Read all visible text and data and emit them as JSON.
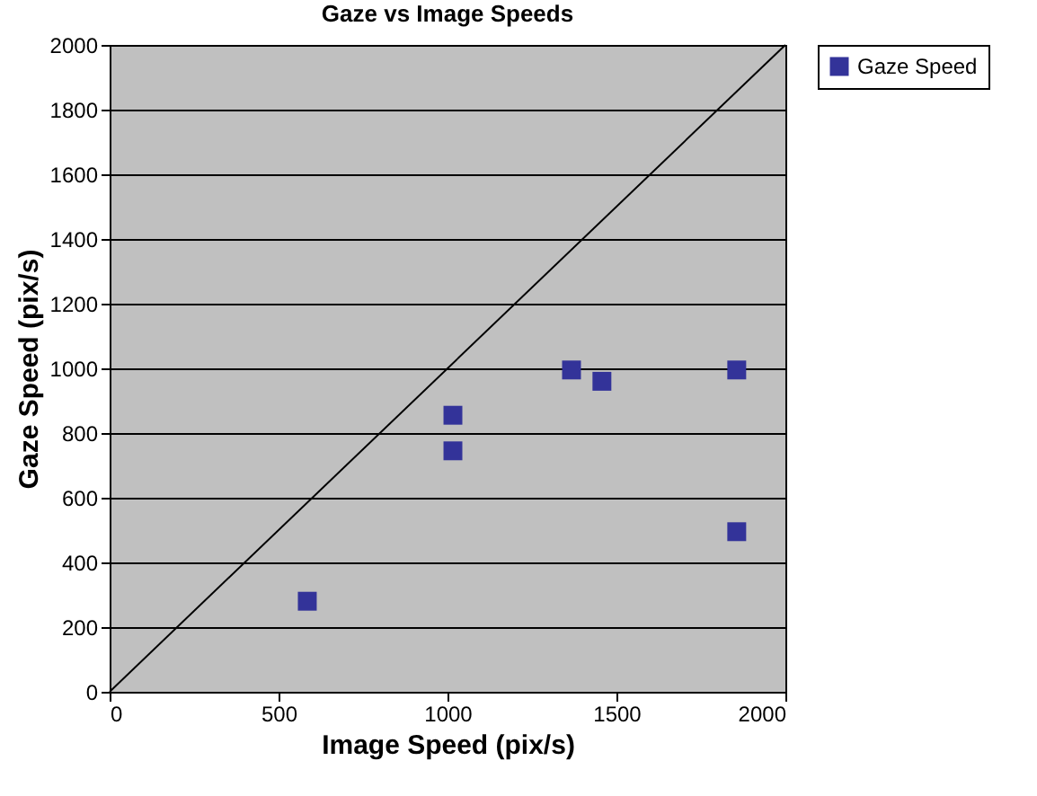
{
  "chart_data": {
    "type": "scatter",
    "title": "Gaze vs Image Speeds",
    "xlabel": "Image Speed (pix/s)",
    "ylabel": "Gaze Speed (pix/s)",
    "series": [
      {
        "name": "Gaze Speed",
        "color": "#333399",
        "marker": "square",
        "x": [
          585,
          1016,
          1016,
          1367,
          1457,
          1856,
          1856
        ],
        "values": [
          280,
          855,
          745,
          995,
          960,
          995,
          495
        ]
      },
      {
        "type": "line",
        "color": "#000000",
        "marker": "none",
        "x": [
          0,
          2000
        ],
        "values": [
          0,
          2000
        ]
      }
    ],
    "xlim": [
      0,
      2000
    ],
    "xticks": [
      0,
      500,
      1000,
      1500,
      2000
    ],
    "ylim": [
      0,
      2000
    ],
    "yticks": [
      0,
      200,
      400,
      600,
      800,
      1000,
      1200,
      1400,
      1600,
      1800,
      2000
    ],
    "grid": "y",
    "legend": "right"
  }
}
